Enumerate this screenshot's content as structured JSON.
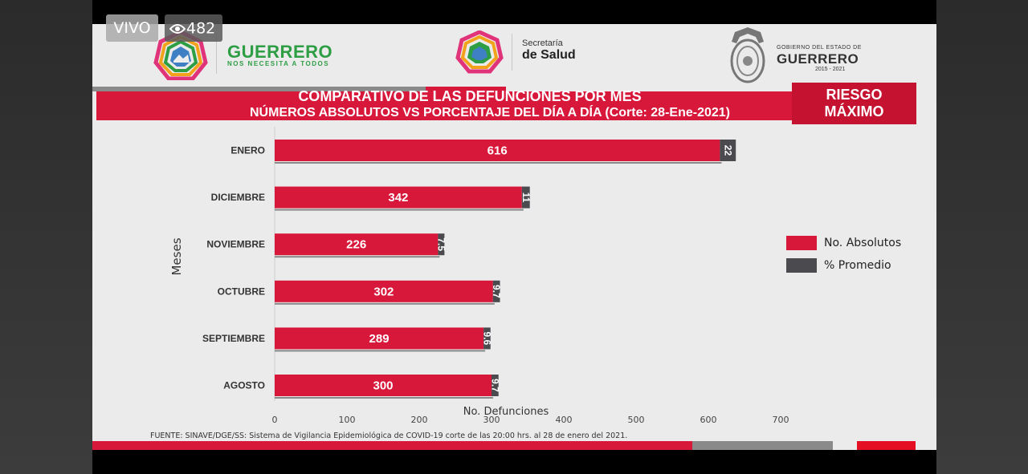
{
  "overlay": {
    "live_label": "VIVO",
    "viewer_count": "482"
  },
  "header": {
    "guerrero_logo_title": "GUERRERO",
    "guerrero_logo_sub": "NOS NECESITA A TODOS",
    "salud_line1": "Secretaría",
    "salud_line2": "de Salud",
    "estado_line1": "GOBIERNO DEL ESTADO DE",
    "estado_line2": "GUERRERO",
    "estado_line3": "2015 - 2021"
  },
  "title_line1": "COMPARATIVO DE LAS DEFUNCIONES POR MES",
  "title_line2": "NÚMEROS ABSOLUTOS VS PORCENTAJE DEL DÍA A DÍA   (Corte: 28-Ene-2021)",
  "risk_badge": {
    "line1": "RIESGO",
    "line2": "MÁXIMO"
  },
  "source_note": "FUENTE: SINAVE/DGE/SS: Sistema de Vigilancia Epidemiológica de COVID-19 corte de las 20:00 hrs. al 28 de  enero del 2021.",
  "colors": {
    "absolutos": "#d8183a",
    "promedio": "#4a4a4f"
  },
  "chart_data": {
    "type": "bar",
    "orientation": "horizontal",
    "categories": [
      "ENERO",
      "DICIEMBRE",
      "NOVIEMBRE",
      "OCTUBRE",
      "SEPTIEMBRE",
      "AGOSTO"
    ],
    "series": [
      {
        "name": "No. Absolutos",
        "values": [
          616,
          342,
          226,
          302,
          289,
          300
        ]
      },
      {
        "name": "% Promedio",
        "values": [
          22,
          11,
          7.5,
          9.7,
          9.6,
          9.7
        ],
        "labels": [
          "22",
          "11",
          "7.5",
          "9.7",
          "9.6",
          "9.7"
        ]
      }
    ],
    "xlabel": "No. Defunciones",
    "ylabel": "Meses",
    "xlim": [
      0,
      700
    ],
    "xticks": [
      "0",
      "100",
      "200",
      "300",
      "400",
      "500",
      "600",
      "700"
    ],
    "legend_position": "right"
  }
}
